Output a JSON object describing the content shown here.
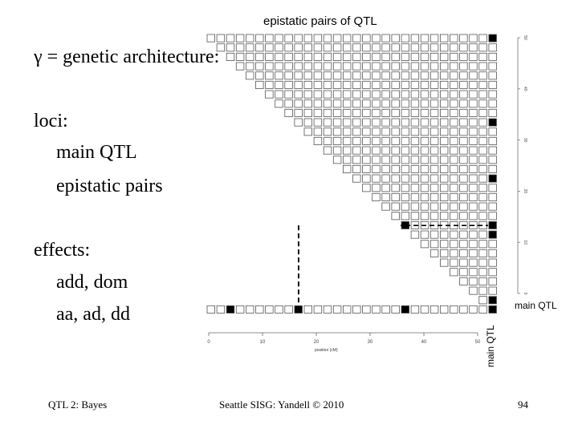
{
  "slide": {
    "gamma_line": "γ = genetic architecture:",
    "loci_heading": "loci:",
    "loci_items": [
      "main QTL",
      "epistatic pairs"
    ],
    "effects_heading": "effects:",
    "effects_items": [
      "add, dom",
      "aa, ad, dd"
    ]
  },
  "figure": {
    "title": "epistatic pairs of QTL",
    "main_qtl_label": "main QTL",
    "x_axis_label": "position (cM)",
    "x_ticks": [
      "0",
      "10",
      "20",
      "30",
      "40",
      "50"
    ],
    "y_ticks": [
      "0",
      "10",
      "20",
      "30",
      "40",
      "50"
    ]
  },
  "footer": {
    "left": "QTL 2: Bayes",
    "center": "Seattle SISG: Yandell © 2010",
    "page": "94"
  },
  "chart_data": {
    "type": "heatmap",
    "title": "epistatic pairs of QTL",
    "xlabel": "position (cM)",
    "ylabel": "",
    "xlim": [
      0,
      50
    ],
    "ylim": [
      0,
      50
    ],
    "grid_cells": 30,
    "main_qtl_highlighted": [
      4,
      15,
      35,
      50
    ],
    "diagonal_highlighted": [
      0,
      1,
      14,
      15,
      24,
      34,
      50
    ],
    "epistatic_pairs": [
      [
        16,
        35
      ],
      [
        16,
        50
      ]
    ],
    "colors": {
      "highlight": "#000000",
      "cell": "#ffffff",
      "border": "#555555"
    }
  }
}
